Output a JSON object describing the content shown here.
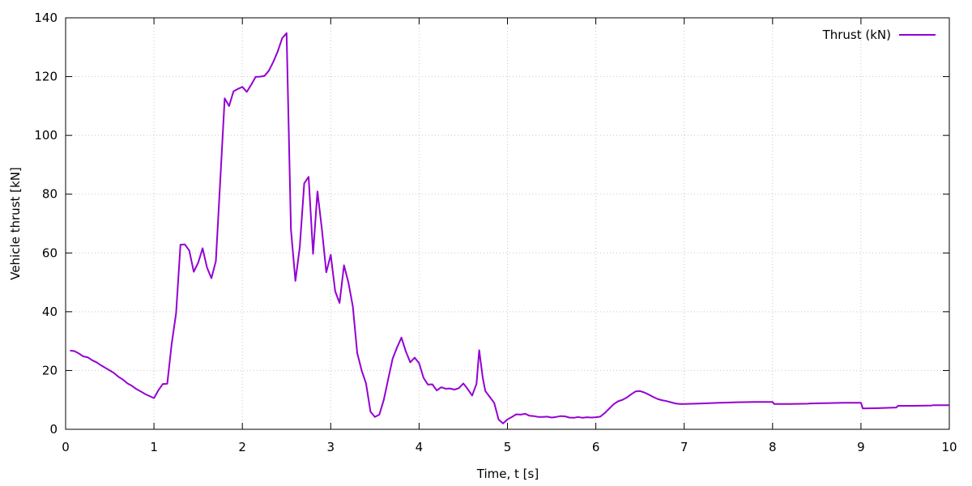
{
  "chart_data": {
    "type": "line",
    "title": "",
    "xlabel": "Time, t [s]",
    "ylabel": "Vehicle thrust [kN]",
    "xlim": [
      0,
      10
    ],
    "ylim": [
      0,
      140
    ],
    "xticks": [
      0,
      1,
      2,
      3,
      4,
      5,
      6,
      7,
      8,
      9,
      10
    ],
    "yticks": [
      0,
      20,
      40,
      60,
      80,
      100,
      120,
      140
    ],
    "grid": true,
    "legend": "top-right",
    "series": [
      {
        "name": "Thrust (kN)",
        "color": "#9400d3",
        "x": [
          0.05,
          0.1,
          0.15,
          0.2,
          0.25,
          0.3,
          0.35,
          0.4,
          0.45,
          0.5,
          0.55,
          0.6,
          0.65,
          0.7,
          0.75,
          0.8,
          0.85,
          0.9,
          0.95,
          1.0,
          1.05,
          1.1,
          1.15,
          1.2,
          1.25,
          1.3,
          1.35,
          1.4,
          1.45,
          1.5,
          1.55,
          1.6,
          1.65,
          1.7,
          1.75,
          1.8,
          1.85,
          1.9,
          1.95,
          2.0,
          2.05,
          2.1,
          2.15,
          2.2,
          2.25,
          2.3,
          2.35,
          2.4,
          2.45,
          2.5,
          2.55,
          2.6,
          2.65,
          2.7,
          2.75,
          2.8,
          2.85,
          2.9,
          2.95,
          3.0,
          3.05,
          3.1,
          3.15,
          3.2,
          3.25,
          3.3,
          3.35,
          3.4,
          3.45,
          3.5,
          3.55,
          3.6,
          3.65,
          3.7,
          3.75,
          3.8,
          3.85,
          3.9,
          3.95,
          4.0,
          4.05,
          4.1,
          4.15,
          4.2,
          4.25,
          4.3,
          4.35,
          4.4,
          4.45,
          4.5,
          4.55,
          4.6,
          4.65,
          4.68,
          4.72,
          4.75,
          4.8,
          4.85,
          4.9,
          4.95,
          5.0,
          5.05,
          5.1,
          5.15,
          5.2,
          5.25,
          5.3,
          5.35,
          5.4,
          5.45,
          5.5,
          5.55,
          5.6,
          5.65,
          5.7,
          5.75,
          5.8,
          5.85,
          5.9,
          5.95,
          6.0,
          6.05,
          6.1,
          6.15,
          6.2,
          6.25,
          6.3,
          6.35,
          6.4,
          6.45,
          6.5,
          6.55,
          6.6,
          6.65,
          6.7,
          6.75,
          6.8,
          6.85,
          6.9,
          6.95,
          7.0,
          7.2,
          7.4,
          7.6,
          7.8,
          8.0,
          8.02,
          8.2,
          8.4,
          8.42,
          8.6,
          8.8,
          9.0,
          9.02,
          9.2,
          9.4,
          9.42,
          9.6,
          9.8,
          9.82,
          10.0
        ],
        "y": [
          26.8,
          26.6,
          25.8,
          24.8,
          24.5,
          23.5,
          22.8,
          21.8,
          20.9,
          20.0,
          19.1,
          17.8,
          16.9,
          15.6,
          14.8,
          13.7,
          12.9,
          12.0,
          11.3,
          10.6,
          13.3,
          15.4,
          15.5,
          29.0,
          39.5,
          62.8,
          62.9,
          60.8,
          53.6,
          56.7,
          61.6,
          55.0,
          51.4,
          57.2,
          84.5,
          112.6,
          110.0,
          115.0,
          115.8,
          116.5,
          114.8,
          117.2,
          119.9,
          120.0,
          120.2,
          122.0,
          125.0,
          128.5,
          133.0,
          134.8,
          68.0,
          50.5,
          62.0,
          83.7,
          85.9,
          59.7,
          80.9,
          68.1,
          53.4,
          59.4,
          47.0,
          43.0,
          55.8,
          50.0,
          41.8,
          26.0,
          20.0,
          15.6,
          6.0,
          4.2,
          5.0,
          10.0,
          17.0,
          24.0,
          27.8,
          31.2,
          26.5,
          22.8,
          24.4,
          22.5,
          17.5,
          15.2,
          15.3,
          13.2,
          14.3,
          13.8,
          13.9,
          13.5,
          14.0,
          15.6,
          13.7,
          11.5,
          15.5,
          26.9,
          17.5,
          13.0,
          11.0,
          9.0,
          3.3,
          2.0,
          3.4,
          4.2,
          5.1,
          5.0,
          5.3,
          4.6,
          4.5,
          4.2,
          4.2,
          4.3,
          4.0,
          4.2,
          4.5,
          4.4,
          4.0,
          3.9,
          4.2,
          3.9,
          4.1,
          4.0,
          4.1,
          4.3,
          5.5,
          7.0,
          8.5,
          9.5,
          10.0,
          10.8,
          11.9,
          12.9,
          13.0,
          12.5,
          11.8,
          11.0,
          10.3,
          9.9,
          9.6,
          9.2,
          8.8,
          8.6,
          8.6,
          8.8,
          9.0,
          9.2,
          9.3,
          9.3,
          8.6,
          8.6,
          8.7,
          8.8,
          8.9,
          9.0,
          9.0,
          7.1,
          7.2,
          7.4,
          8.0,
          8.0,
          8.1,
          8.2,
          8.2
        ]
      }
    ]
  }
}
